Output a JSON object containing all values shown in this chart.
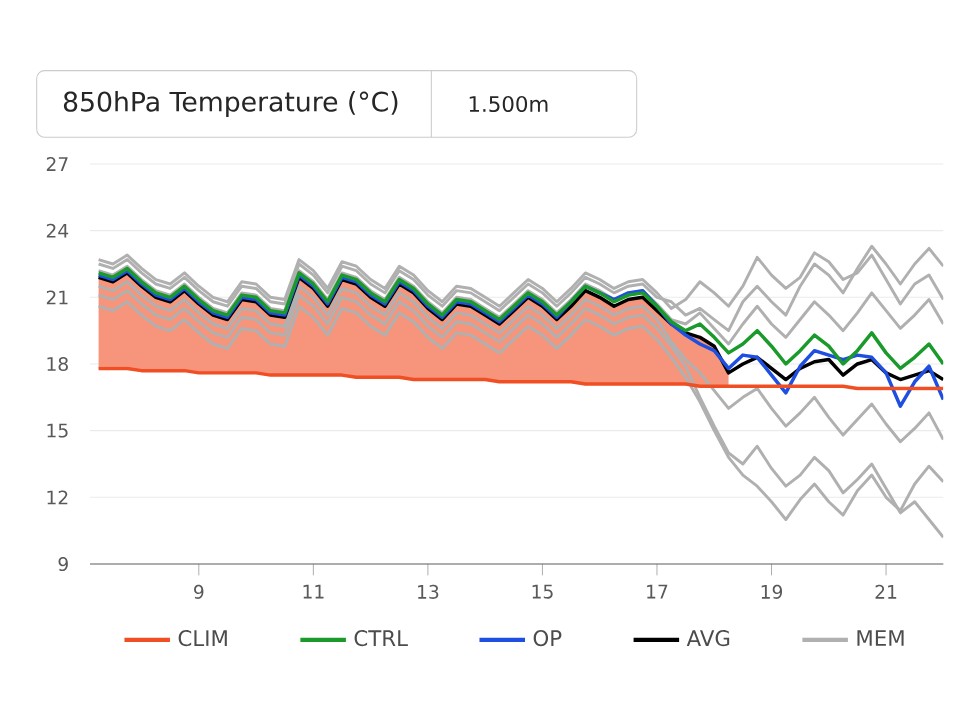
{
  "chart_data": {
    "type": "line",
    "title": "850hPa Temperature (°C)",
    "subtitle": "1.500m",
    "x": [
      7.25,
      7.5,
      7.75,
      8,
      8.25,
      8.5,
      8.75,
      9,
      9.25,
      9.5,
      9.75,
      10,
      10.25,
      10.5,
      10.75,
      11,
      11.25,
      11.5,
      11.75,
      12,
      12.25,
      12.5,
      12.75,
      13,
      13.25,
      13.5,
      13.75,
      14,
      14.25,
      14.5,
      14.75,
      15,
      15.25,
      15.5,
      15.75,
      16,
      16.25,
      16.5,
      16.75,
      17,
      17.25,
      17.5,
      17.75,
      18,
      18.25,
      18.5,
      18.75,
      19,
      19.25,
      19.5,
      19.75,
      20,
      20.25,
      20.5,
      20.75,
      21,
      21.25,
      21.5,
      21.75,
      22
    ],
    "xlim": [
      7.1,
      22
    ],
    "xticks": [
      9,
      11,
      13,
      15,
      17,
      19,
      21
    ],
    "ylim": [
      9,
      27
    ],
    "yticks": [
      9,
      12,
      15,
      18,
      21,
      24,
      27
    ],
    "grid": "y",
    "legend": "bottom",
    "series": [
      {
        "name": "CLIM",
        "color": "#f04e23",
        "values": [
          17.8,
          17.8,
          17.8,
          17.7,
          17.7,
          17.7,
          17.7,
          17.6,
          17.6,
          17.6,
          17.6,
          17.6,
          17.5,
          17.5,
          17.5,
          17.5,
          17.5,
          17.5,
          17.4,
          17.4,
          17.4,
          17.4,
          17.3,
          17.3,
          17.3,
          17.3,
          17.3,
          17.3,
          17.2,
          17.2,
          17.2,
          17.2,
          17.2,
          17.2,
          17.1,
          17.1,
          17.1,
          17.1,
          17.1,
          17.1,
          17.1,
          17.1,
          17.0,
          17.0,
          17.0,
          17.0,
          17.0,
          17.0,
          17.0,
          17.0,
          17.0,
          17.0,
          17.0,
          16.9,
          16.9,
          16.9,
          16.9,
          16.9,
          16.9,
          16.9
        ],
        "lower": [
          17.8,
          17.8,
          17.8,
          17.7,
          17.7,
          17.7,
          17.7,
          17.6,
          17.6,
          17.6,
          17.6,
          17.6,
          17.5,
          17.5,
          17.5,
          17.5,
          17.5,
          17.5,
          17.4,
          17.4,
          17.4,
          17.4,
          17.3,
          17.3,
          17.3,
          17.3,
          17.3,
          17.3,
          17.2,
          17.2,
          17.2,
          17.2,
          17.2,
          17.2,
          17.1,
          17.1,
          17.1,
          17.1,
          17.1,
          17.1,
          17.1,
          17.1,
          17.0,
          17.0,
          17.0,
          null,
          null,
          null,
          null,
          null,
          null,
          null,
          null,
          null,
          null,
          null,
          null,
          null,
          null,
          null
        ],
        "upper": [
          21.9,
          21.7,
          22.1,
          21.5,
          21.0,
          20.8,
          21.3,
          20.7,
          20.2,
          20.0,
          20.9,
          20.8,
          20.2,
          20.1,
          21.9,
          21.4,
          20.6,
          21.8,
          21.6,
          21.0,
          20.6,
          21.6,
          21.2,
          20.5,
          20.0,
          20.7,
          20.6,
          20.2,
          19.8,
          20.4,
          21.0,
          20.6,
          20.0,
          20.6,
          21.3,
          21.0,
          20.6,
          20.9,
          21.0,
          20.4,
          19.8,
          19.4,
          19.2,
          18.8,
          17.6,
          null,
          null,
          null,
          null,
          null,
          null,
          null,
          null,
          null,
          null,
          null,
          null,
          null,
          null,
          null
        ]
      },
      {
        "name": "CTRL",
        "color": "#1a9a2a",
        "values": [
          22.1,
          21.9,
          22.3,
          21.7,
          21.2,
          21.0,
          21.5,
          20.9,
          20.4,
          20.2,
          21.1,
          21.0,
          20.4,
          20.3,
          22.1,
          21.6,
          20.8,
          22.0,
          21.8,
          21.2,
          20.8,
          21.8,
          21.4,
          20.7,
          20.2,
          20.9,
          20.8,
          20.4,
          20.0,
          20.6,
          21.2,
          20.8,
          20.2,
          20.8,
          21.5,
          21.2,
          20.8,
          21.1,
          21.2,
          20.6,
          19.9,
          19.5,
          19.8,
          19.2,
          18.5,
          18.9,
          19.5,
          18.8,
          18.0,
          18.6,
          19.3,
          18.8,
          18.0,
          18.6,
          19.4,
          18.5,
          17.8,
          18.3,
          18.9,
          18.0
        ]
      },
      {
        "name": "OP",
        "color": "#1f4fe0",
        "values": [
          22.0,
          21.8,
          22.2,
          21.6,
          21.1,
          20.9,
          21.4,
          20.8,
          20.3,
          20.1,
          21.0,
          20.9,
          20.3,
          20.2,
          22.0,
          21.5,
          20.7,
          21.9,
          21.7,
          21.1,
          20.7,
          21.7,
          21.3,
          20.6,
          20.1,
          20.8,
          20.7,
          20.3,
          19.9,
          20.5,
          21.1,
          20.7,
          20.1,
          20.8,
          21.5,
          21.2,
          20.9,
          21.2,
          21.3,
          20.6,
          19.8,
          19.3,
          18.9,
          18.6,
          17.8,
          18.4,
          18.3,
          17.5,
          16.7,
          17.9,
          18.6,
          18.4,
          18.2,
          18.4,
          18.3,
          17.6,
          16.1,
          17.2,
          17.9,
          16.4
        ]
      },
      {
        "name": "AVG",
        "color": "#000000",
        "values": [
          21.9,
          21.7,
          22.1,
          21.5,
          21.0,
          20.8,
          21.3,
          20.7,
          20.2,
          20.0,
          20.9,
          20.8,
          20.2,
          20.1,
          21.9,
          21.4,
          20.6,
          21.8,
          21.6,
          21.0,
          20.6,
          21.6,
          21.2,
          20.5,
          20.0,
          20.7,
          20.6,
          20.2,
          19.8,
          20.4,
          21.0,
          20.6,
          20.0,
          20.6,
          21.3,
          21.0,
          20.6,
          20.9,
          21.0,
          20.4,
          19.8,
          19.4,
          19.2,
          18.8,
          17.6,
          18.0,
          18.3,
          17.8,
          17.3,
          17.8,
          18.1,
          18.2,
          17.5,
          18.0,
          18.2,
          17.6,
          17.3,
          17.5,
          17.7,
          17.3
        ]
      },
      {
        "name": "MEM",
        "color": "#b0b0b0",
        "values": [
          22.5,
          22.3,
          22.7,
          22.1,
          21.6,
          21.4,
          21.9,
          21.3,
          20.8,
          20.6,
          21.5,
          21.4,
          20.8,
          20.7,
          22.5,
          22.0,
          21.2,
          22.4,
          22.2,
          21.6,
          21.2,
          22.2,
          21.8,
          21.1,
          20.6,
          21.3,
          21.2,
          20.8,
          20.4,
          21.0,
          21.6,
          21.2,
          20.6,
          21.2,
          21.9,
          21.6,
          21.2,
          21.5,
          21.6,
          21.0,
          20.8,
          20.2,
          20.5,
          20.0,
          19.5,
          20.8,
          21.5,
          20.8,
          20.2,
          21.5,
          22.5,
          22.0,
          21.2,
          22.3,
          23.3,
          22.5,
          21.6,
          22.5,
          23.2,
          22.4
        ]
      },
      {
        "color": "#b0b0b0",
        "values": [
          21.1,
          20.9,
          21.3,
          20.7,
          20.2,
          20.0,
          20.5,
          19.9,
          19.4,
          19.2,
          20.1,
          20.0,
          19.4,
          19.3,
          21.1,
          20.6,
          19.8,
          21.0,
          20.8,
          20.2,
          19.8,
          20.8,
          20.4,
          19.7,
          19.2,
          19.9,
          19.8,
          19.4,
          19.0,
          19.6,
          20.2,
          19.8,
          19.2,
          19.8,
          20.5,
          20.2,
          19.8,
          20.1,
          20.2,
          19.6,
          18.8,
          17.9,
          16.5,
          15.2,
          14.0,
          13.5,
          14.3,
          13.3,
          12.5,
          13.0,
          13.8,
          13.2,
          12.2,
          12.8,
          13.5,
          12.4,
          11.3,
          11.8,
          11.0,
          10.2
        ]
      },
      {
        "color": "#b0b0b0",
        "values": [
          22.2,
          22.0,
          22.4,
          21.8,
          21.3,
          21.1,
          21.6,
          21.0,
          20.5,
          20.3,
          21.2,
          21.1,
          20.5,
          20.4,
          22.2,
          21.7,
          20.9,
          22.1,
          21.9,
          21.3,
          20.9,
          21.9,
          21.5,
          20.8,
          20.3,
          21.0,
          20.9,
          20.5,
          20.1,
          20.7,
          21.3,
          20.9,
          20.3,
          20.9,
          21.6,
          21.3,
          20.9,
          21.2,
          21.3,
          20.7,
          20.0,
          19.8,
          20.3,
          19.6,
          18.9,
          19.8,
          20.6,
          19.8,
          19.2,
          20.0,
          20.8,
          20.2,
          19.5,
          20.3,
          21.2,
          20.4,
          19.6,
          20.2,
          20.9,
          19.8
        ]
      },
      {
        "color": "#b0b0b0",
        "values": [
          21.5,
          21.3,
          21.7,
          21.1,
          20.6,
          20.4,
          20.9,
          20.3,
          19.8,
          19.6,
          20.5,
          20.4,
          19.8,
          19.7,
          21.5,
          21.0,
          20.2,
          21.4,
          21.2,
          20.6,
          20.2,
          21.2,
          20.8,
          20.1,
          19.6,
          20.3,
          20.2,
          19.8,
          19.4,
          20.0,
          20.6,
          20.2,
          19.6,
          20.2,
          20.9,
          20.6,
          20.2,
          20.5,
          20.6,
          20.0,
          19.0,
          18.2,
          17.6,
          16.8,
          16.0,
          16.5,
          16.9,
          16.0,
          15.2,
          15.8,
          16.5,
          15.6,
          14.8,
          15.5,
          16.2,
          15.3,
          14.5,
          15.1,
          15.8,
          14.6
        ]
      },
      {
        "color": "#b0b0b0",
        "values": [
          22.7,
          22.5,
          22.9,
          22.3,
          21.8,
          21.6,
          22.1,
          21.5,
          21.0,
          20.8,
          21.7,
          21.6,
          21.0,
          20.9,
          22.7,
          22.2,
          21.4,
          22.6,
          22.4,
          21.8,
          21.4,
          22.4,
          22.0,
          21.3,
          20.8,
          21.5,
          21.4,
          21.0,
          20.6,
          21.2,
          21.8,
          21.4,
          20.8,
          21.4,
          22.1,
          21.8,
          21.4,
          21.7,
          21.8,
          21.2,
          20.5,
          20.9,
          21.7,
          21.2,
          20.6,
          21.5,
          22.8,
          22.0,
          21.4,
          21.9,
          23.0,
          22.6,
          21.8,
          22.1,
          22.9,
          21.8,
          20.7,
          21.6,
          22.0,
          20.9
        ]
      },
      {
        "color": "#b0b0b0",
        "values": [
          20.6,
          20.4,
          20.8,
          20.2,
          19.7,
          19.5,
          20.0,
          19.4,
          18.9,
          18.7,
          19.6,
          19.5,
          18.9,
          18.8,
          20.6,
          20.1,
          19.3,
          20.5,
          20.3,
          19.7,
          19.3,
          20.3,
          19.9,
          19.2,
          18.7,
          19.4,
          19.3,
          18.9,
          18.5,
          19.1,
          19.7,
          19.3,
          18.7,
          19.3,
          20.0,
          19.7,
          19.3,
          19.6,
          19.7,
          19.1,
          18.3,
          17.4,
          16.3,
          15.0,
          13.8,
          13.0,
          12.5,
          11.8,
          11.0,
          11.9,
          12.6,
          11.8,
          11.2,
          12.3,
          13.0,
          12.0,
          11.4,
          12.6,
          13.4,
          12.7
        ]
      }
    ]
  }
}
